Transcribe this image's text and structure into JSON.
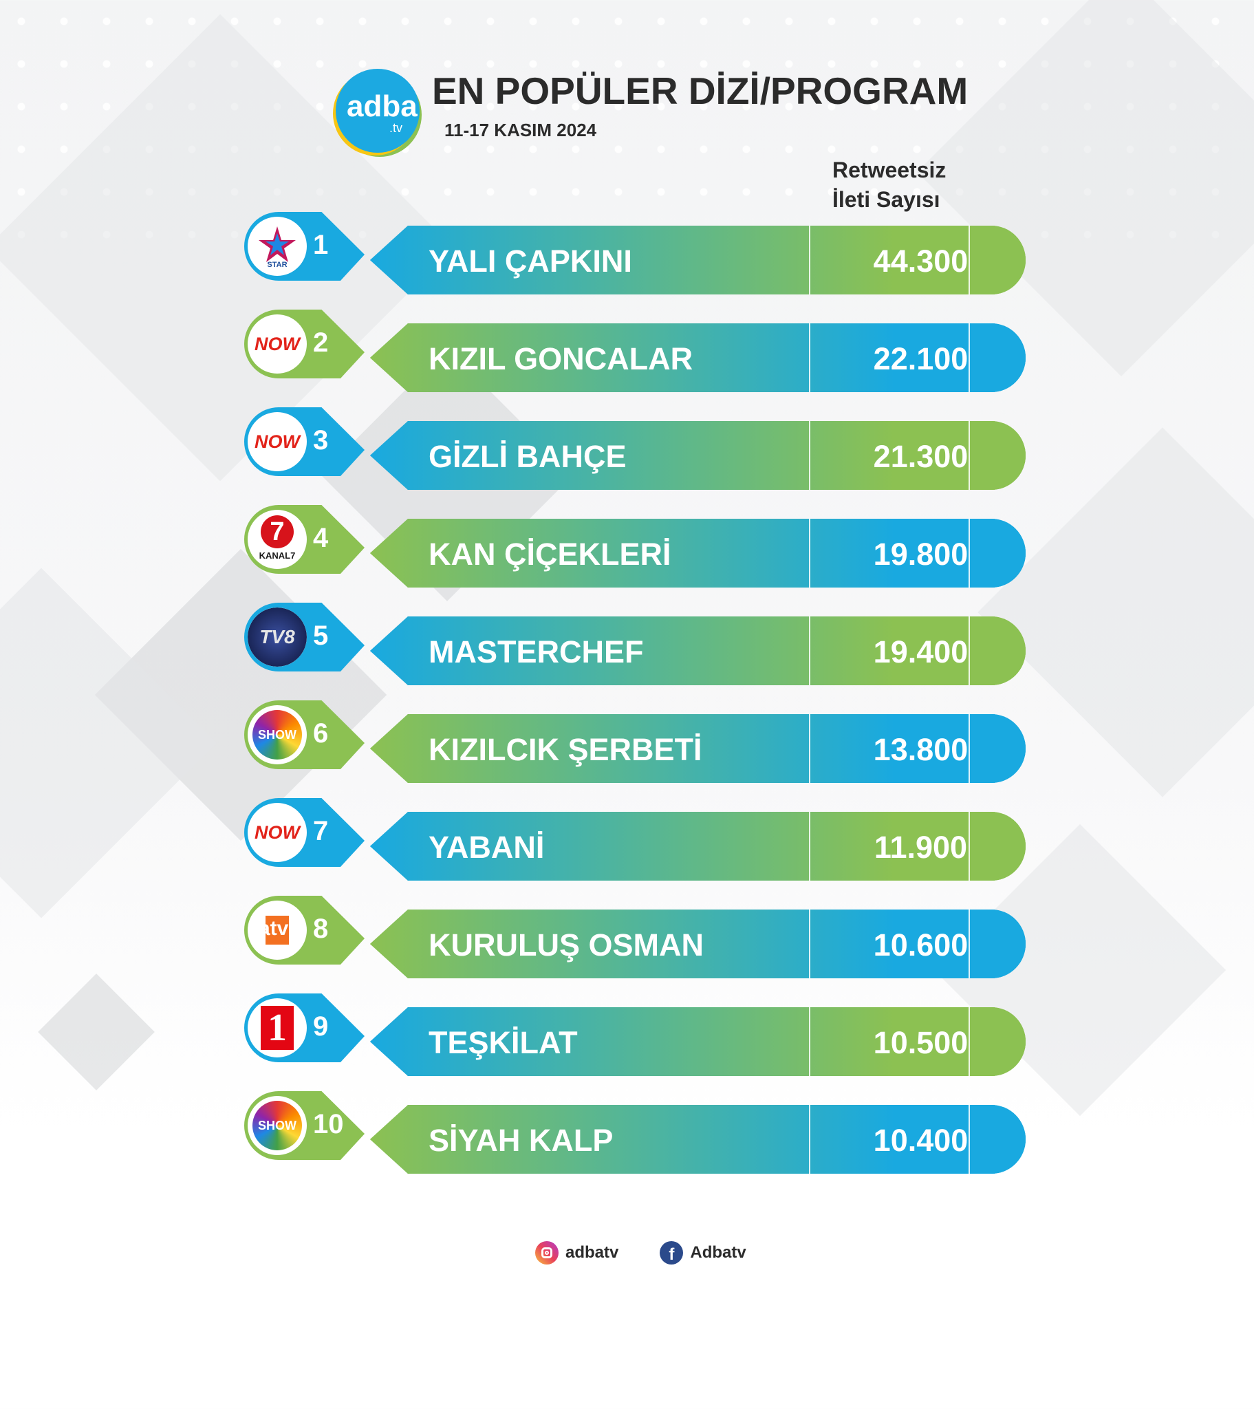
{
  "header": {
    "logo_text": "adba",
    "logo_sub": ".tv",
    "title": "EN POPÜLER DİZİ/PROGRAM",
    "date": "11-17 KASIM 2024",
    "column_header": [
      "Retweetsiz",
      "İleti Sayısı"
    ]
  },
  "colors": {
    "blue": "#19a9e0",
    "green": "#8cc152",
    "text": "#2b2b2b"
  },
  "rows": [
    {
      "rank": "1",
      "name": "YALI ÇAPKINI",
      "count": "44.300",
      "channel": "star-tv",
      "badge": "blue"
    },
    {
      "rank": "2",
      "name": "KIZIL GONCALAR",
      "count": "22.100",
      "channel": "now",
      "badge": "green"
    },
    {
      "rank": "3",
      "name": "GİZLİ BAHÇE",
      "count": "21.300",
      "channel": "now",
      "badge": "blue"
    },
    {
      "rank": "4",
      "name": "KAN ÇİÇEKLERİ",
      "count": "19.800",
      "channel": "kanal-7",
      "badge": "green"
    },
    {
      "rank": "5",
      "name": "MASTERCHEF",
      "count": "19.400",
      "channel": "tv8",
      "badge": "blue"
    },
    {
      "rank": "6",
      "name": "KIZILCIK ŞERBETİ",
      "count": "13.800",
      "channel": "show-tv",
      "badge": "green"
    },
    {
      "rank": "7",
      "name": "YABANİ",
      "count": "11.900",
      "channel": "now",
      "badge": "blue"
    },
    {
      "rank": "8",
      "name": "KURULUŞ OSMAN",
      "count": "10.600",
      "channel": "atv",
      "badge": "green"
    },
    {
      "rank": "9",
      "name": "TEŞKİLAT",
      "count": "10.500",
      "channel": "trt-1",
      "badge": "blue"
    },
    {
      "rank": "10",
      "name": "SİYAH KALP",
      "count": "10.400",
      "channel": "show-tv",
      "badge": "green"
    }
  ],
  "channel_logos": {
    "star-tv": {
      "text": "STAR"
    },
    "now": {
      "text": "NOW"
    },
    "kanal-7": {
      "text": "KANAL7",
      "mark": "7"
    },
    "tv8": {
      "text": "TV8"
    },
    "show-tv": {
      "text": "SHOW"
    },
    "atv": {
      "text": "atv"
    },
    "trt-1": {
      "text": "1"
    }
  },
  "footer": {
    "instagram": "adbatv",
    "facebook": "Adbatv"
  }
}
